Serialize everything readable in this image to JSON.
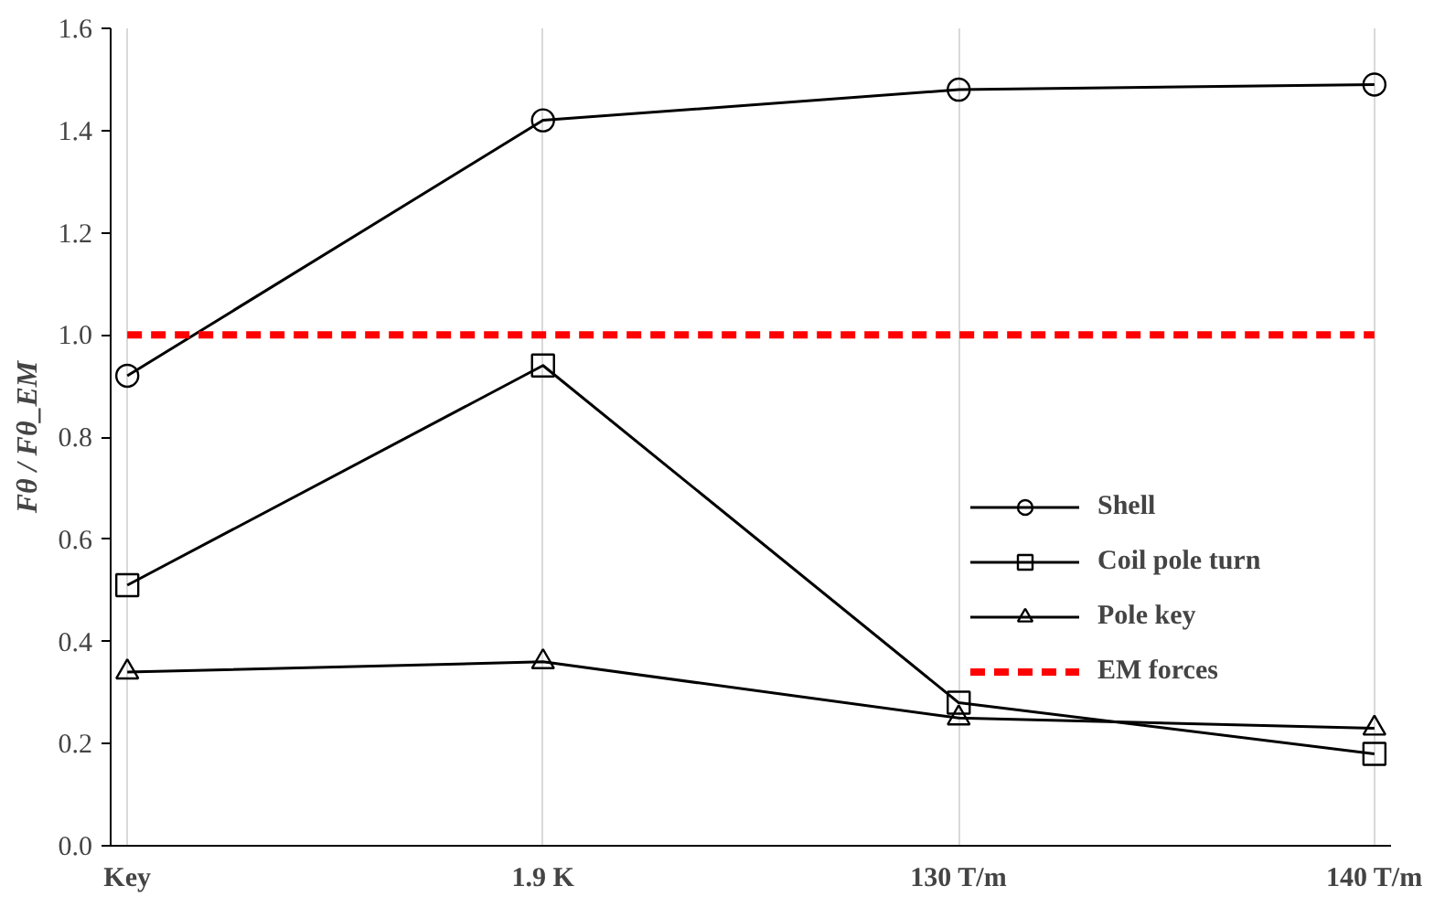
{
  "chart_data": {
    "type": "line",
    "ylabel": "Fθ / Fθ_EM",
    "categories": [
      "Key",
      "1.9 K",
      "130 T/m",
      "140 T/m"
    ],
    "series": [
      {
        "name": "Shell",
        "color": "#000000",
        "marker": "circle",
        "line_style": "solid",
        "values": [
          0.92,
          1.42,
          1.48,
          1.49
        ]
      },
      {
        "name": "Coil pole turn",
        "color": "#000000",
        "marker": "square",
        "line_style": "solid",
        "values": [
          0.51,
          0.94,
          0.28,
          0.18
        ]
      },
      {
        "name": "Pole key",
        "color": "#000000",
        "marker": "triangle",
        "line_style": "solid",
        "values": [
          0.34,
          0.36,
          0.25,
          0.23
        ]
      },
      {
        "name": "EM forces",
        "color": "#ff0000",
        "marker": "none",
        "line_style": "dashed",
        "values": [
          1.0,
          1.0,
          1.0,
          1.0
        ]
      }
    ],
    "ylim": [
      0,
      1.6
    ],
    "yticks": [
      {
        "value": 0,
        "label": "0.0"
      },
      {
        "value": 0.2,
        "label": "0.2"
      },
      {
        "value": 0.4,
        "label": "0.4"
      },
      {
        "value": 0.6,
        "label": "0.6"
      },
      {
        "value": 0.8,
        "label": "0.8"
      },
      {
        "value": 1.0,
        "label": "1.0"
      },
      {
        "value": 1.2,
        "label": "1.2"
      },
      {
        "value": 1.4,
        "label": "1.4"
      },
      {
        "value": 1.6,
        "label": "1.6"
      }
    ],
    "grid": "x",
    "legend": "right"
  }
}
